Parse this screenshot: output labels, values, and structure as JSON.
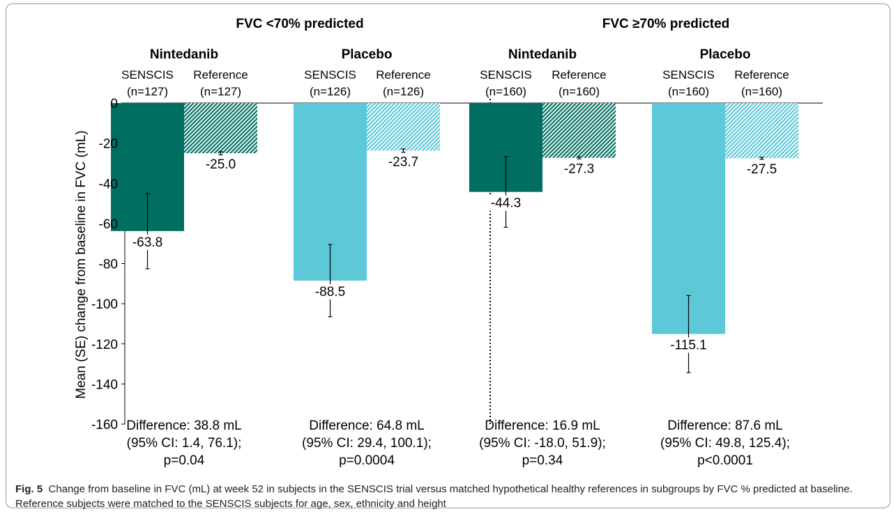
{
  "chart_data": {
    "type": "bar",
    "ylabel": "Mean (SE) change from baseline in FVC (mL)",
    "ylim": [
      -160,
      0
    ],
    "yticks": [
      0,
      -20,
      -40,
      -60,
      -80,
      -100,
      -120,
      -140,
      -160
    ],
    "colors": {
      "nintedanib": "#006f62",
      "placebo": "#5cc8d8"
    },
    "panels": [
      {
        "title": "FVC <70% predicted",
        "groups": [
          {
            "name": "Nintedanib",
            "color_key": "nintedanib",
            "difference": [
              "Difference: 38.8 mL",
              "(95% CI: 1.4, 76.1);",
              "p=0.04"
            ],
            "bars": [
              {
                "label": "SENSCIS",
                "n": "(n=127)",
                "value": -63.8,
                "se": 18.8,
                "value_label": "-63.8",
                "pattern": "solid"
              },
              {
                "label": "Reference",
                "n": "(n=127)",
                "value": -25.0,
                "se": 0.8,
                "value_label": "-25.0",
                "pattern": "hatched"
              }
            ]
          },
          {
            "name": "Placebo",
            "color_key": "placebo",
            "difference": [
              "Difference: 64.8 mL",
              "(95% CI: 29.4, 100.1);",
              "p=0.0004"
            ],
            "bars": [
              {
                "label": "SENSCIS",
                "n": "(n=126)",
                "value": -88.5,
                "se": 18.0,
                "value_label": "-88.5",
                "pattern": "solid"
              },
              {
                "label": "Reference",
                "n": "(n=126)",
                "value": -23.7,
                "se": 0.8,
                "value_label": "-23.7",
                "pattern": "hatched"
              }
            ]
          }
        ]
      },
      {
        "title": "FVC ≥70% predicted",
        "groups": [
          {
            "name": "Nintedanib",
            "color_key": "nintedanib",
            "difference": [
              "Difference: 16.9 mL",
              "(95% CI: -18.0, 51.9);",
              "p=0.34"
            ],
            "bars": [
              {
                "label": "SENSCIS",
                "n": "(n=160)",
                "value": -44.3,
                "se": 17.6,
                "value_label": "-44.3",
                "pattern": "solid"
              },
              {
                "label": "Reference",
                "n": "(n=160)",
                "value": -27.3,
                "se": 0.5,
                "value_label": "-27.3",
                "pattern": "hatched"
              }
            ]
          },
          {
            "name": "Placebo",
            "color_key": "placebo",
            "difference": [
              "Difference: 87.6 mL",
              "(95% CI: 49.8, 125.4);",
              "p<0.0001"
            ],
            "bars": [
              {
                "label": "SENSCIS",
                "n": "(n=160)",
                "value": -115.1,
                "se": 19.2,
                "value_label": "-115.1",
                "pattern": "solid"
              },
              {
                "label": "Reference",
                "n": "(n=160)",
                "value": -27.5,
                "se": 0.5,
                "value_label": "-27.5",
                "pattern": "hatched"
              }
            ]
          }
        ]
      }
    ]
  },
  "caption": {
    "label": "Fig. 5",
    "text": "Change from baseline in FVC (mL) at week 52 in subjects in the SENSCIS trial versus matched hypothetical healthy references in subgroups by FVC % predicted at baseline. Reference subjects were matched to the SENSCIS subjects for age, sex, ethnicity and height"
  }
}
